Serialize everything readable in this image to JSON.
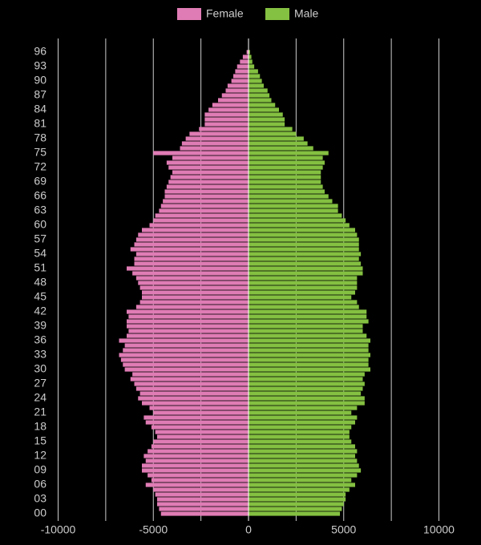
{
  "chart_data": {
    "type": "pyramid",
    "categories": [
      "00",
      null,
      null,
      "03",
      null,
      null,
      "06",
      null,
      null,
      "09",
      null,
      null,
      "12",
      null,
      null,
      "15",
      null,
      null,
      "18",
      null,
      null,
      "21",
      null,
      null,
      "24",
      null,
      null,
      "27",
      null,
      null,
      "30",
      null,
      null,
      "33",
      null,
      null,
      "36",
      null,
      null,
      "39",
      null,
      null,
      "42",
      null,
      null,
      "45",
      null,
      null,
      "48",
      null,
      null,
      "51",
      null,
      null,
      "54",
      null,
      null,
      "57",
      null,
      null,
      "60",
      null,
      null,
      "63",
      null,
      null,
      "66",
      null,
      null,
      "69",
      null,
      null,
      "72",
      null,
      null,
      "75",
      null,
      null,
      "78",
      null,
      null,
      "81",
      null,
      null,
      "84",
      null,
      null,
      "87",
      null,
      null,
      "90",
      null,
      null,
      "93",
      null,
      null,
      "96"
    ],
    "series": [
      {
        "name": "Female",
        "color": "#e07cb5",
        "values": [
          -4600,
          -4700,
          -4800,
          -4800,
          -4900,
          -5000,
          -5400,
          -5100,
          -5300,
          -5600,
          -5600,
          -5400,
          -5500,
          -5300,
          -5100,
          -5000,
          -4800,
          -4900,
          -5100,
          -5400,
          -5500,
          -5000,
          -5200,
          -5600,
          -5800,
          -5700,
          -5900,
          -6000,
          -6200,
          -6100,
          -6500,
          -6600,
          -6700,
          -6800,
          -6600,
          -6500,
          -6800,
          -6400,
          -6300,
          -6400,
          -6400,
          -6300,
          -6400,
          -5900,
          -5700,
          -5600,
          -5600,
          -5700,
          -5800,
          -5900,
          -6100,
          -6400,
          -6000,
          -6000,
          -5900,
          -6200,
          -6000,
          -5900,
          -5800,
          -5600,
          -5200,
          -5000,
          -4900,
          -4700,
          -4600,
          -4500,
          -4400,
          -4400,
          -4300,
          -4200,
          -4100,
          -4000,
          -4200,
          -4300,
          -4000,
          -5000,
          -3600,
          -3500,
          -3300,
          -3100,
          -2600,
          -2300,
          -2300,
          -2300,
          -2100,
          -1900,
          -1600,
          -1400,
          -1200,
          -1100,
          -900,
          -800,
          -700,
          -600,
          -450,
          -300,
          -100
        ]
      },
      {
        "name": "Male",
        "color": "#84c041",
        "values": [
          4800,
          4900,
          5000,
          5100,
          5100,
          5300,
          5600,
          5400,
          5700,
          5900,
          5800,
          5700,
          5600,
          5700,
          5600,
          5400,
          5300,
          5300,
          5400,
          5600,
          5700,
          5400,
          5700,
          6100,
          6100,
          5900,
          6000,
          6100,
          6000,
          6100,
          6400,
          6300,
          6300,
          6400,
          6300,
          6300,
          6400,
          6200,
          6000,
          6000,
          6300,
          6200,
          6200,
          5800,
          5700,
          5400,
          5600,
          5700,
          5700,
          5700,
          6000,
          6000,
          5900,
          5800,
          5900,
          5800,
          5800,
          5800,
          5700,
          5600,
          5300,
          5100,
          4900,
          4700,
          4700,
          4400,
          4200,
          4000,
          3900,
          3800,
          3800,
          3800,
          3900,
          4000,
          3900,
          4200,
          3400,
          3100,
          2900,
          2500,
          2300,
          1900,
          1900,
          1800,
          1600,
          1400,
          1200,
          1100,
          1000,
          800,
          700,
          600,
          500,
          300,
          200,
          150,
          80
        ]
      }
    ],
    "xlim": [
      -12000,
      12000
    ],
    "xticks": [
      -10000,
      -5000,
      0,
      5000,
      10000
    ],
    "xgrid": [
      -10000,
      -7500,
      -5000,
      -2500,
      0,
      2500,
      5000,
      7500,
      10000
    ],
    "grid": true,
    "legend": "top"
  }
}
